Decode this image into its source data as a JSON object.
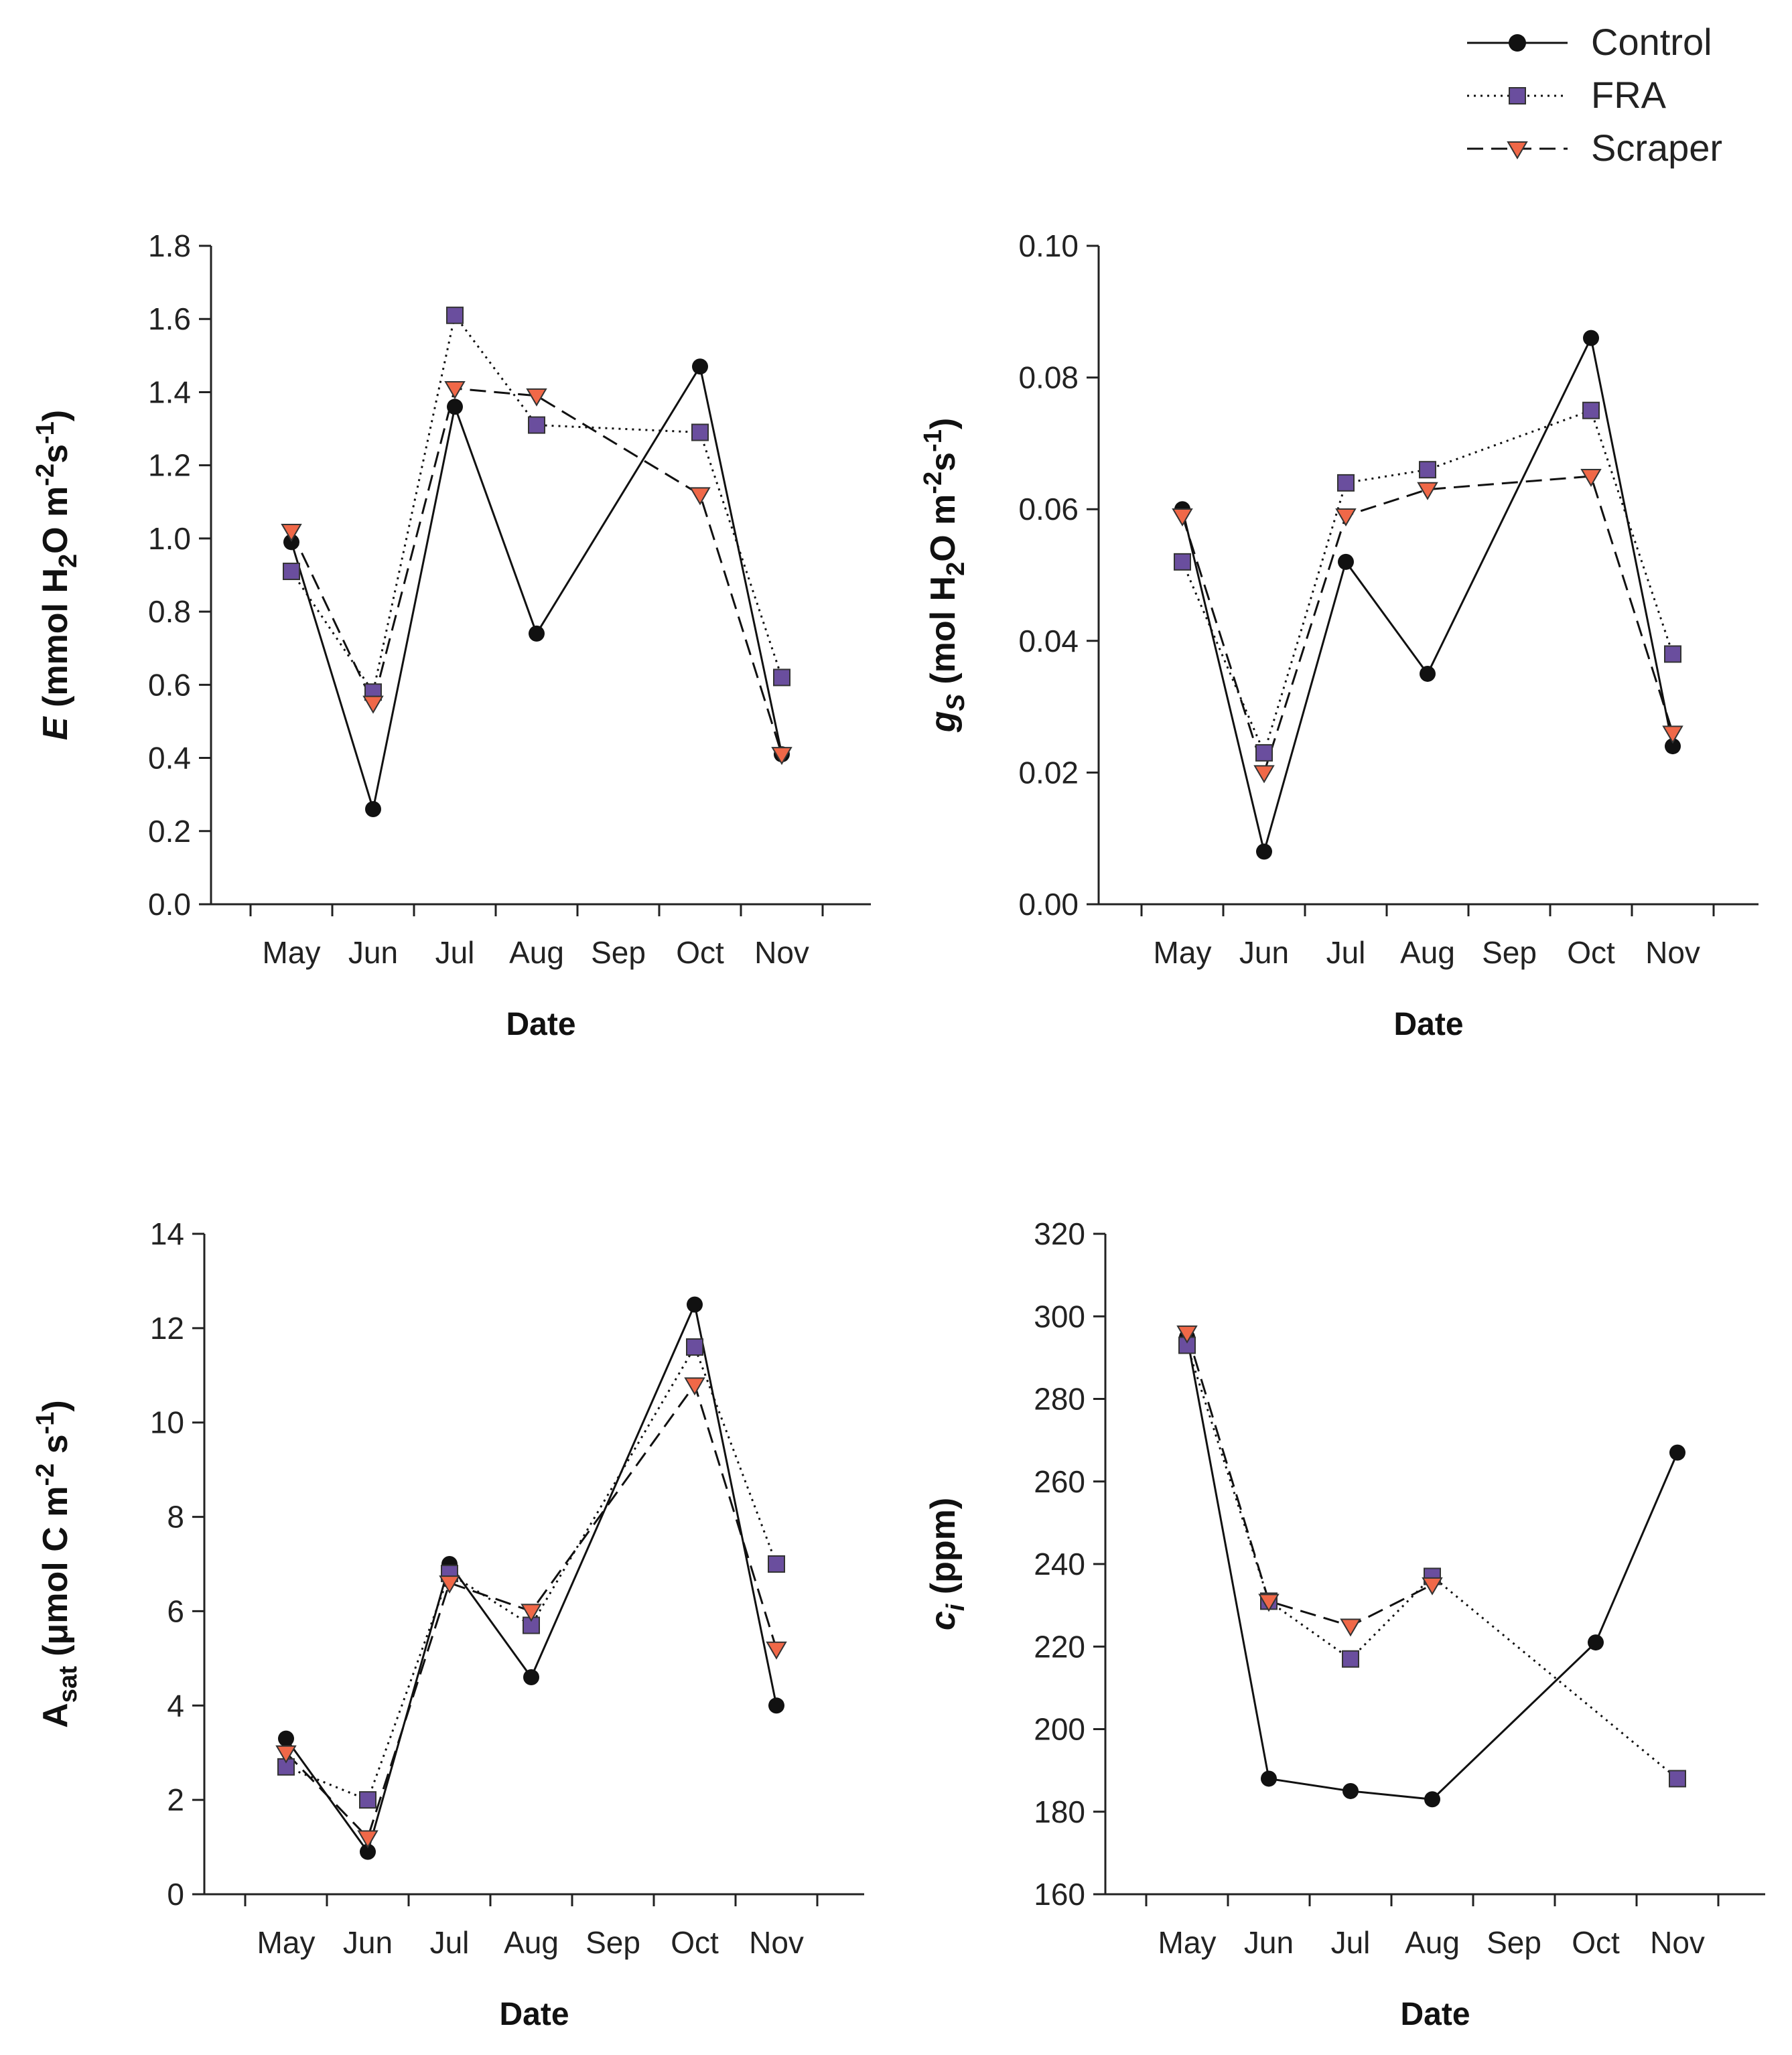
{
  "colors": {
    "control": "#111111",
    "fra": "#6a4e9e",
    "scraper": "#f06848",
    "axis": "#222222"
  },
  "legend": {
    "entries": [
      {
        "key": "control",
        "label": "Control"
      },
      {
        "key": "fra",
        "label": "FRA"
      },
      {
        "key": "scraper",
        "label": "Scraper"
      }
    ]
  },
  "chart_data": [
    {
      "id": "E",
      "type": "line",
      "title": "",
      "xlabel": "Date",
      "ylabel": {
        "italic": "E",
        "text": " (mmol H",
        "sub": "2",
        "text2": "O m",
        "sup": "-2",
        "text3": "s",
        "sup2": "-1",
        "text4": ")"
      },
      "categories": [
        "May",
        "Jun",
        "Jul",
        "Aug",
        "Sep",
        "Oct",
        "Nov"
      ],
      "ylim": [
        0,
        1.8
      ],
      "yticks": [
        "0.0",
        "0.2",
        "0.4",
        "0.6",
        "0.8",
        "1.0",
        "1.2",
        "1.4",
        "1.6",
        "1.8"
      ],
      "series": [
        {
          "name": "Control",
          "key": "control",
          "values": [
            0.99,
            0.26,
            1.36,
            0.74,
            null,
            1.47,
            0.41
          ]
        },
        {
          "name": "FRA",
          "key": "fra",
          "values": [
            0.91,
            0.58,
            1.61,
            1.31,
            null,
            1.29,
            0.62
          ]
        },
        {
          "name": "Scraper",
          "key": "scraper",
          "values": [
            1.02,
            0.55,
            1.41,
            1.39,
            null,
            1.12,
            0.41
          ]
        }
      ]
    },
    {
      "id": "gs",
      "type": "line",
      "title": "",
      "xlabel": "Date",
      "ylabel": {
        "italic": "g",
        "isub": "S",
        "text": " (mol H",
        "sub": "2",
        "text2": "O m",
        "sup": "-2",
        "text3": "s",
        "sup2": "-1",
        "text4": ")"
      },
      "categories": [
        "May",
        "Jun",
        "Jul",
        "Aug",
        "Sep",
        "Oct",
        "Nov"
      ],
      "ylim": [
        0,
        0.1
      ],
      "yticks": [
        "0.00",
        "0.02",
        "0.04",
        "0.06",
        "0.08",
        "0.10"
      ],
      "series": [
        {
          "name": "Control",
          "key": "control",
          "values": [
            0.06,
            0.008,
            0.052,
            0.035,
            null,
            0.086,
            0.024
          ]
        },
        {
          "name": "FRA",
          "key": "fra",
          "values": [
            0.052,
            0.023,
            0.064,
            0.066,
            null,
            0.075,
            0.038
          ]
        },
        {
          "name": "Scraper",
          "key": "scraper",
          "values": [
            0.059,
            0.02,
            0.059,
            0.063,
            null,
            0.065,
            0.026
          ]
        }
      ]
    },
    {
      "id": "Asat",
      "type": "line",
      "title": "",
      "xlabel": "Date",
      "ylabel": {
        "text": "A",
        "sub": "sat",
        "text2": " (μmol C m",
        "sup": "-2",
        "text3": " s",
        "sup2": "-1",
        "text4": ")"
      },
      "categories": [
        "May",
        "Jun",
        "Jul",
        "Aug",
        "Sep",
        "Oct",
        "Nov"
      ],
      "ylim": [
        0,
        14
      ],
      "yticks": [
        "0",
        "2",
        "4",
        "6",
        "8",
        "10",
        "12",
        "14"
      ],
      "series": [
        {
          "name": "Control",
          "key": "control",
          "values": [
            3.3,
            0.9,
            7.0,
            4.6,
            null,
            12.5,
            4.0
          ]
        },
        {
          "name": "FRA",
          "key": "fra",
          "values": [
            2.7,
            2.0,
            6.8,
            5.7,
            null,
            11.6,
            7.0
          ]
        },
        {
          "name": "Scraper",
          "key": "scraper",
          "values": [
            3.0,
            1.2,
            6.6,
            6.0,
            null,
            10.8,
            5.2
          ]
        }
      ]
    },
    {
      "id": "ci",
      "type": "line",
      "title": "",
      "xlabel": "Date",
      "ylabel": {
        "italic": "c",
        "isub": "i",
        "text": " (ppm)"
      },
      "categories": [
        "May",
        "Jun",
        "Jul",
        "Aug",
        "Sep",
        "Oct",
        "Nov"
      ],
      "ylim": [
        160,
        320
      ],
      "yticks": [
        "160",
        "180",
        "200",
        "220",
        "240",
        "260",
        "280",
        "300",
        "320"
      ],
      "series": [
        {
          "name": "Control",
          "key": "control",
          "values": [
            295,
            188,
            185,
            183,
            null,
            221,
            267
          ]
        },
        {
          "name": "FRA",
          "key": "fra",
          "values": [
            293,
            231,
            217,
            237,
            null,
            null,
            188
          ]
        },
        {
          "name": "Scraper",
          "key": "scraper",
          "values": [
            296,
            231,
            225,
            235,
            null,
            null,
            null
          ]
        }
      ]
    }
  ]
}
